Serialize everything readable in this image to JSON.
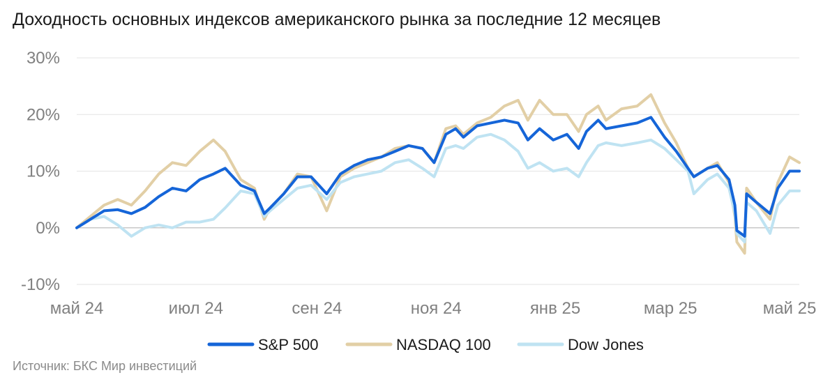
{
  "title": "Доходность основных индексов американского рынка за последние 12 месяцев",
  "source": "Источник: БКС Мир инвестиций",
  "chart_data": {
    "type": "line",
    "title": "Доходность основных индексов американского рынка за последние 12 месяцев",
    "x_range": [
      "2024-05-01",
      "2025-05-06"
    ],
    "ylim": [
      -10,
      30
    ],
    "yticks": [
      -10,
      0,
      10,
      20,
      30
    ],
    "ytick_labels": [
      "-10%",
      "0%",
      "10%",
      "20%",
      "30%"
    ],
    "xticks": [
      "2024-05-01",
      "2024-07-01",
      "2024-09-01",
      "2024-11-01",
      "2025-01-01",
      "2025-03-01",
      "2025-05-01"
    ],
    "xtick_labels": [
      "май 24",
      "июл 24",
      "сен 24",
      "ноя 24",
      "янв 25",
      "мар 25",
      "май 25"
    ],
    "grid": "horizontal",
    "legend": "bottom",
    "series": [
      {
        "name": "S&P 500",
        "color": "#1565d8",
        "points": [
          [
            "2024-05-01",
            0
          ],
          [
            "2024-05-08",
            1.5
          ],
          [
            "2024-05-15",
            3
          ],
          [
            "2024-05-22",
            3.2
          ],
          [
            "2024-05-29",
            2.5
          ],
          [
            "2024-06-05",
            3.6
          ],
          [
            "2024-06-12",
            5.5
          ],
          [
            "2024-06-19",
            7
          ],
          [
            "2024-06-26",
            6.5
          ],
          [
            "2024-07-03",
            8.5
          ],
          [
            "2024-07-10",
            9.5
          ],
          [
            "2024-07-16",
            10.5
          ],
          [
            "2024-07-24",
            7.5
          ],
          [
            "2024-07-31",
            6.5
          ],
          [
            "2024-08-05",
            2.5
          ],
          [
            "2024-08-08",
            3.5
          ],
          [
            "2024-08-15",
            6
          ],
          [
            "2024-08-22",
            9
          ],
          [
            "2024-08-29",
            9
          ],
          [
            "2024-09-06",
            6
          ],
          [
            "2024-09-13",
            9.5
          ],
          [
            "2024-09-20",
            11
          ],
          [
            "2024-09-27",
            12
          ],
          [
            "2024-10-04",
            12.5
          ],
          [
            "2024-10-11",
            13.5
          ],
          [
            "2024-10-18",
            14.5
          ],
          [
            "2024-10-25",
            14
          ],
          [
            "2024-10-31",
            11.5
          ],
          [
            "2024-11-06",
            16.5
          ],
          [
            "2024-11-11",
            17.5
          ],
          [
            "2024-11-15",
            16
          ],
          [
            "2024-11-22",
            18
          ],
          [
            "2024-11-29",
            18.5
          ],
          [
            "2024-12-06",
            19
          ],
          [
            "2024-12-13",
            18.5
          ],
          [
            "2024-12-18",
            15.5
          ],
          [
            "2024-12-24",
            17.5
          ],
          [
            "2024-12-31",
            15.5
          ],
          [
            "2025-01-07",
            16.5
          ],
          [
            "2025-01-13",
            14
          ],
          [
            "2025-01-17",
            17
          ],
          [
            "2025-01-23",
            19
          ],
          [
            "2025-01-27",
            17.5
          ],
          [
            "2025-02-04",
            18
          ],
          [
            "2025-02-12",
            18.5
          ],
          [
            "2025-02-19",
            19.5
          ],
          [
            "2025-02-26",
            16
          ],
          [
            "2025-03-04",
            13.5
          ],
          [
            "2025-03-10",
            10.5
          ],
          [
            "2025-03-13",
            9
          ],
          [
            "2025-03-20",
            10.5
          ],
          [
            "2025-03-25",
            11
          ],
          [
            "2025-03-31",
            8.5
          ],
          [
            "2025-04-03",
            4
          ],
          [
            "2025-04-04",
            -0.5
          ],
          [
            "2025-04-08",
            -1.5
          ],
          [
            "2025-04-09",
            6
          ],
          [
            "2025-04-14",
            4.5
          ],
          [
            "2025-04-21",
            2.5
          ],
          [
            "2025-04-25",
            7
          ],
          [
            "2025-05-01",
            10
          ],
          [
            "2025-05-06",
            10
          ]
        ]
      },
      {
        "name": "NASDAQ 100",
        "color": "#e2cfa6",
        "points": [
          [
            "2024-05-01",
            0
          ],
          [
            "2024-05-08",
            2
          ],
          [
            "2024-05-15",
            4
          ],
          [
            "2024-05-22",
            5
          ],
          [
            "2024-05-29",
            4
          ],
          [
            "2024-06-05",
            6.5
          ],
          [
            "2024-06-12",
            9.5
          ],
          [
            "2024-06-19",
            11.5
          ],
          [
            "2024-06-26",
            11
          ],
          [
            "2024-07-03",
            13.5
          ],
          [
            "2024-07-10",
            15.5
          ],
          [
            "2024-07-16",
            13.5
          ],
          [
            "2024-07-24",
            8.5
          ],
          [
            "2024-07-31",
            7
          ],
          [
            "2024-08-05",
            1.5
          ],
          [
            "2024-08-08",
            3.5
          ],
          [
            "2024-08-15",
            6
          ],
          [
            "2024-08-22",
            9.5
          ],
          [
            "2024-08-29",
            9
          ],
          [
            "2024-09-06",
            3
          ],
          [
            "2024-09-13",
            9
          ],
          [
            "2024-09-20",
            10.5
          ],
          [
            "2024-09-27",
            11.5
          ],
          [
            "2024-10-04",
            12.5
          ],
          [
            "2024-10-11",
            14
          ],
          [
            "2024-10-18",
            14.5
          ],
          [
            "2024-10-25",
            14
          ],
          [
            "2024-10-31",
            11.5
          ],
          [
            "2024-11-06",
            17.5
          ],
          [
            "2024-11-11",
            18
          ],
          [
            "2024-11-15",
            16.5
          ],
          [
            "2024-11-22",
            18.5
          ],
          [
            "2024-11-29",
            19.5
          ],
          [
            "2024-12-06",
            21.5
          ],
          [
            "2024-12-13",
            22.5
          ],
          [
            "2024-12-18",
            19
          ],
          [
            "2024-12-24",
            22.5
          ],
          [
            "2024-12-31",
            20
          ],
          [
            "2025-01-07",
            20
          ],
          [
            "2025-01-13",
            17
          ],
          [
            "2025-01-17",
            20
          ],
          [
            "2025-01-23",
            21.5
          ],
          [
            "2025-01-27",
            19
          ],
          [
            "2025-02-04",
            21
          ],
          [
            "2025-02-12",
            21.5
          ],
          [
            "2025-02-19",
            23.5
          ],
          [
            "2025-02-26",
            18.5
          ],
          [
            "2025-03-04",
            15
          ],
          [
            "2025-03-10",
            10.5
          ],
          [
            "2025-03-13",
            9
          ],
          [
            "2025-03-20",
            10.5
          ],
          [
            "2025-03-25",
            11.5
          ],
          [
            "2025-03-31",
            8
          ],
          [
            "2025-04-03",
            2
          ],
          [
            "2025-04-04",
            -2.5
          ],
          [
            "2025-04-08",
            -4.5
          ],
          [
            "2025-04-09",
            7
          ],
          [
            "2025-04-14",
            4.5
          ],
          [
            "2025-04-21",
            1.5
          ],
          [
            "2025-04-25",
            8
          ],
          [
            "2025-05-01",
            12.5
          ],
          [
            "2025-05-06",
            11.5
          ]
        ]
      },
      {
        "name": "Dow Jones",
        "color": "#bfe3f2",
        "points": [
          [
            "2024-05-01",
            0
          ],
          [
            "2024-05-08",
            1.5
          ],
          [
            "2024-05-15",
            2
          ],
          [
            "2024-05-22",
            0.5
          ],
          [
            "2024-05-29",
            -1.5
          ],
          [
            "2024-06-05",
            0
          ],
          [
            "2024-06-12",
            0.5
          ],
          [
            "2024-06-19",
            0
          ],
          [
            "2024-06-26",
            1
          ],
          [
            "2024-07-03",
            1
          ],
          [
            "2024-07-10",
            1.5
          ],
          [
            "2024-07-16",
            3.5
          ],
          [
            "2024-07-24",
            6.5
          ],
          [
            "2024-07-31",
            6
          ],
          [
            "2024-08-05",
            2
          ],
          [
            "2024-08-08",
            3
          ],
          [
            "2024-08-15",
            5
          ],
          [
            "2024-08-22",
            7
          ],
          [
            "2024-08-29",
            7.5
          ],
          [
            "2024-09-06",
            5
          ],
          [
            "2024-09-13",
            8
          ],
          [
            "2024-09-20",
            9
          ],
          [
            "2024-09-27",
            9.5
          ],
          [
            "2024-10-04",
            10
          ],
          [
            "2024-10-11",
            11.5
          ],
          [
            "2024-10-18",
            12
          ],
          [
            "2024-10-25",
            10.5
          ],
          [
            "2024-10-31",
            9
          ],
          [
            "2024-11-06",
            14
          ],
          [
            "2024-11-11",
            14.5
          ],
          [
            "2024-11-15",
            14
          ],
          [
            "2024-11-22",
            16
          ],
          [
            "2024-11-29",
            16.5
          ],
          [
            "2024-12-06",
            15.5
          ],
          [
            "2024-12-13",
            13.5
          ],
          [
            "2024-12-18",
            10.5
          ],
          [
            "2024-12-24",
            11.5
          ],
          [
            "2024-12-31",
            10
          ],
          [
            "2025-01-07",
            10.5
          ],
          [
            "2025-01-13",
            9
          ],
          [
            "2025-01-17",
            11.5
          ],
          [
            "2025-01-23",
            14.5
          ],
          [
            "2025-01-27",
            15
          ],
          [
            "2025-02-04",
            14.5
          ],
          [
            "2025-02-12",
            15
          ],
          [
            "2025-02-19",
            15.5
          ],
          [
            "2025-02-26",
            14
          ],
          [
            "2025-03-04",
            12
          ],
          [
            "2025-03-10",
            10
          ],
          [
            "2025-03-13",
            6
          ],
          [
            "2025-03-20",
            8.5
          ],
          [
            "2025-03-25",
            9.5
          ],
          [
            "2025-03-31",
            7
          ],
          [
            "2025-04-03",
            2.5
          ],
          [
            "2025-04-04",
            -1
          ],
          [
            "2025-04-08",
            -2.5
          ],
          [
            "2025-04-09",
            4.5
          ],
          [
            "2025-04-14",
            3
          ],
          [
            "2025-04-21",
            -1
          ],
          [
            "2025-04-25",
            4
          ],
          [
            "2025-05-01",
            6.5
          ],
          [
            "2025-05-06",
            6.5
          ]
        ]
      }
    ]
  }
}
